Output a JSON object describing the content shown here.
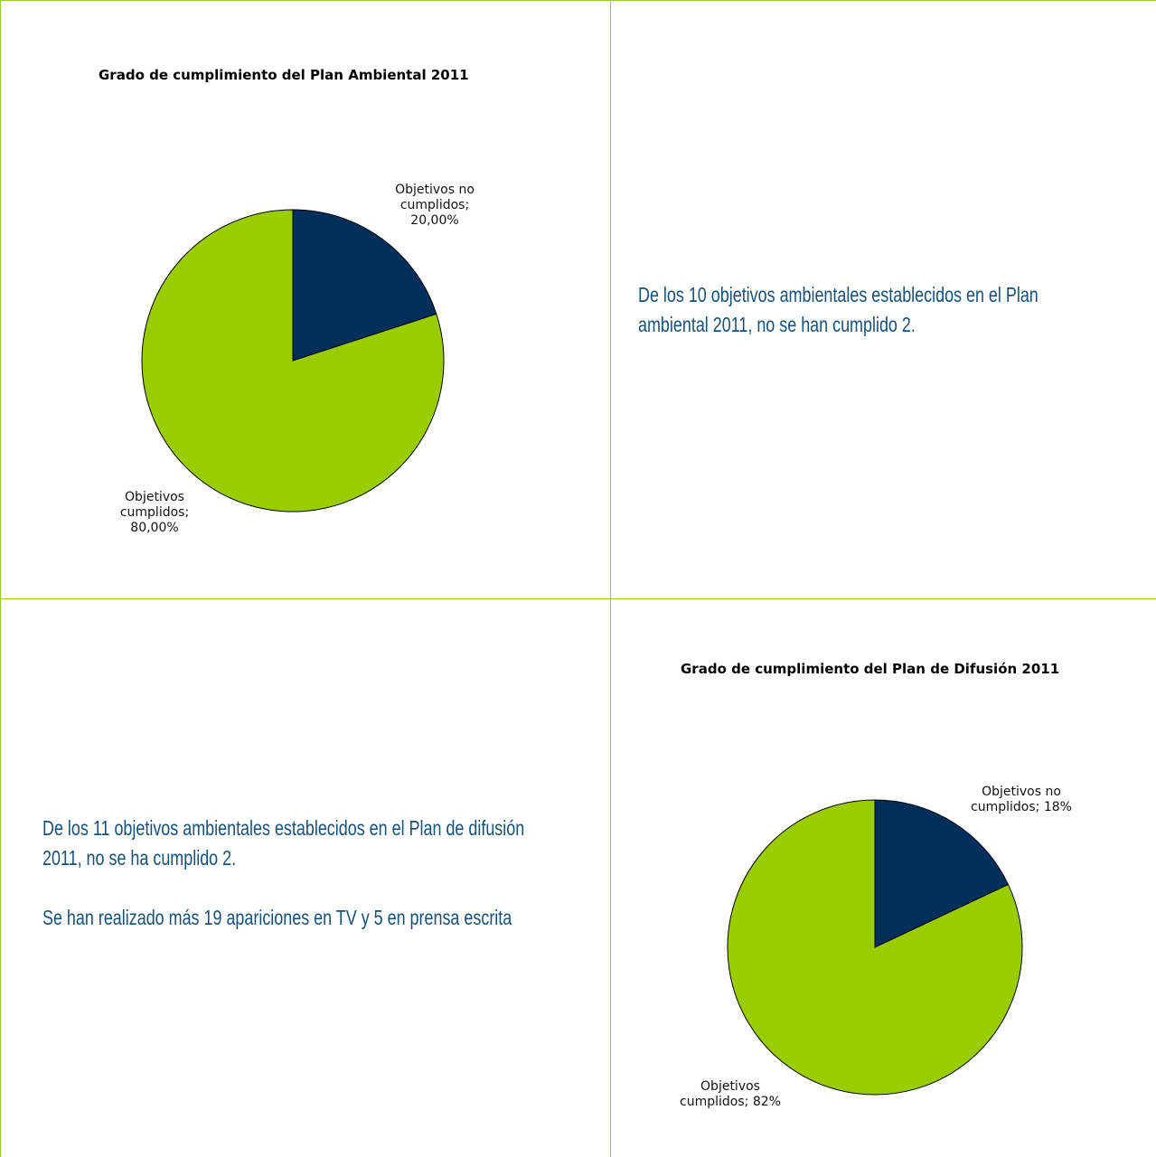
{
  "chart_data": [
    {
      "type": "pie",
      "title": "Grado de cumplimiento del Plan Ambiental 2011",
      "slices": [
        {
          "label": "Objetivos no cumplidos;",
          "value_label": "20,00%",
          "value": 20.0,
          "color": "#002f5c"
        },
        {
          "label": "Objetivos cumplidos;",
          "value_label": "80,00%",
          "value": 80.0,
          "color": "#9acd00"
        }
      ],
      "legend": "none"
    },
    {
      "type": "pie",
      "title": "Grado de cumplimiento del Plan de Difusión 2011",
      "slices": [
        {
          "label": "Objetivos no cumplidos; 18%",
          "value": 18,
          "color": "#002f5c"
        },
        {
          "label": "Objetivos cumplidos; 82%",
          "value": 82,
          "color": "#9acd00"
        }
      ],
      "legend": "none"
    }
  ],
  "text": {
    "ambiental_line1": "De los 10 objetivos ambientales establecidos en el Plan",
    "ambiental_line2": "ambiental 2011, no se han cumplido 2.",
    "difusion_line1": "De los 11 objetivos ambientales establecidos en el Plan de difusión",
    "difusion_line2": "2011, no se ha cumplido 2.",
    "difusion_line3": "Se han realizado más 19 apariciones en TV y 5 en prensa escrita"
  },
  "colors": {
    "grid_border": "#9bc531",
    "text": "#17517a"
  }
}
